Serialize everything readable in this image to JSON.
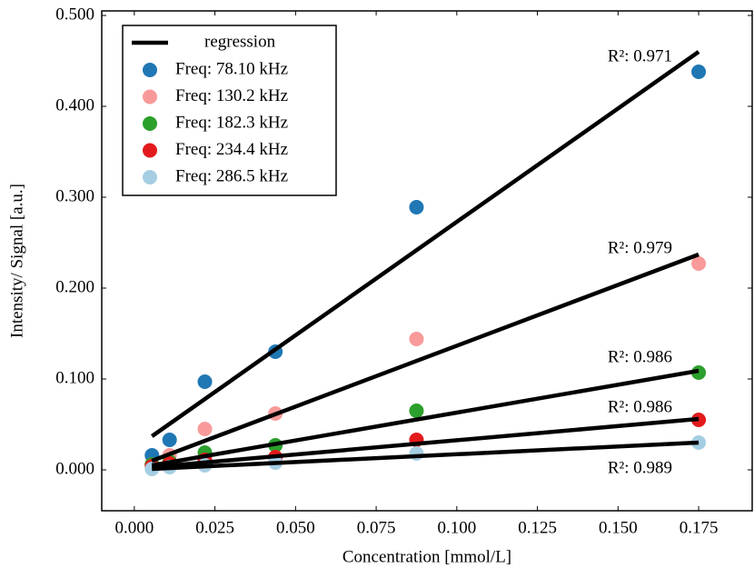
{
  "chart_data": {
    "type": "scatter",
    "xlabel": "Concentration [mmol/L]",
    "ylabel": "Intensity/ Signal [a.u.]",
    "xlim": [
      -0.0101,
      0.1916
    ],
    "ylim": [
      -0.045,
      0.505
    ],
    "xticks": [
      {
        "value": 0,
        "label": "0.000"
      },
      {
        "value": 0.025,
        "label": "0.025"
      },
      {
        "value": 0.05,
        "label": "0.050"
      },
      {
        "value": 0.075,
        "label": "0.075"
      },
      {
        "value": 0.1,
        "label": "0.100"
      },
      {
        "value": 0.125,
        "label": "0.125"
      },
      {
        "value": 0.15,
        "label": "0.150"
      },
      {
        "value": 0.175,
        "label": "0.175"
      }
    ],
    "yticks": [
      {
        "value": 0,
        "label": "0.000"
      },
      {
        "value": 0.1,
        "label": "0.100"
      },
      {
        "value": 0.2,
        "label": "0.200"
      },
      {
        "value": 0.3,
        "label": "0.300"
      },
      {
        "value": 0.4,
        "label": "0.400"
      },
      {
        "value": 0.5,
        "label": "0.500"
      }
    ],
    "x": [
      0.00547,
      0.01094,
      0.02188,
      0.04375,
      0.0875,
      0.175
    ],
    "series": [
      {
        "name": "Freq: 78.10 kHz",
        "color": "#1f77b4",
        "values": [
          0.016,
          0.033,
          0.097,
          0.13,
          0.289,
          0.438
        ]
      },
      {
        "name": "Freq: 130.2 kHz",
        "color": "#f89a9a",
        "values": [
          0.006,
          0.016,
          0.045,
          0.062,
          0.144,
          0.227
        ]
      },
      {
        "name": "Freq: 182.3 kHz",
        "color": "#2ca02c",
        "values": [
          0.006,
          0.009,
          0.019,
          0.027,
          0.065,
          0.107
        ]
      },
      {
        "name": "Freq: 234.4 kHz",
        "color": "#e31a1c",
        "values": [
          0.004,
          0.007,
          0.011,
          0.014,
          0.033,
          0.055
        ]
      },
      {
        "name": "Freq: 286.5 kHz",
        "color": "#a6cee3",
        "values": [
          0.001,
          0.003,
          0.005,
          0.008,
          0.018,
          0.03
        ]
      }
    ],
    "regression": {
      "name": "regression",
      "color": "#000000",
      "x": [
        0.00547,
        0.175
      ],
      "lines": [
        {
          "values": [
            0.037,
            0.46
          ],
          "label": "R²: 0.971"
        },
        {
          "values": [
            0.01,
            0.237
          ],
          "label": "R²: 0.979"
        },
        {
          "values": [
            0.005,
            0.109
          ],
          "label": "R²: 0.986"
        },
        {
          "values": [
            0.003,
            0.056
          ],
          "label": "R²: 0.986"
        },
        {
          "values": [
            0.001,
            0.03
          ],
          "label": "R²: 0.989"
        }
      ]
    }
  }
}
